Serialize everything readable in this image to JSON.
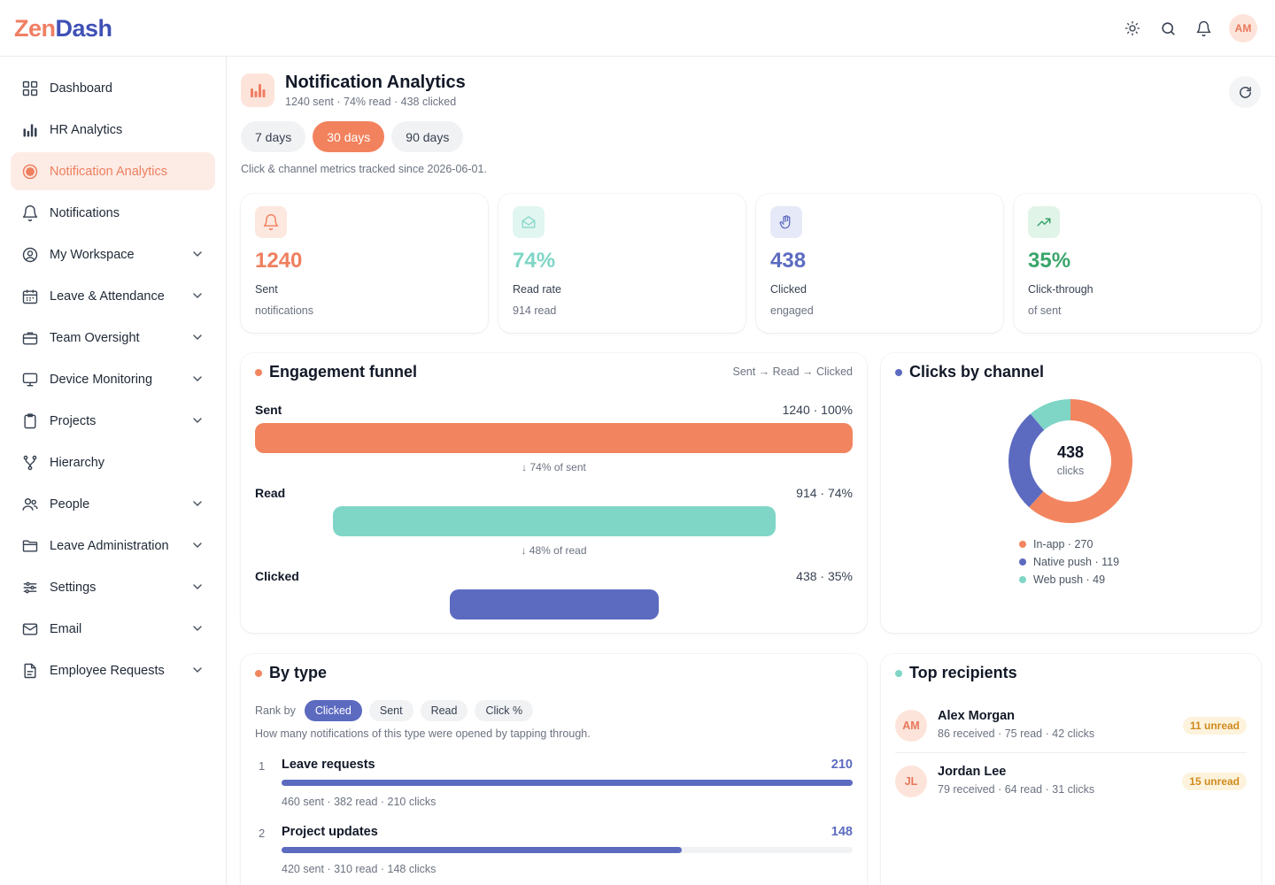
{
  "brand": {
    "part1": "Zen",
    "part2": "Dash"
  },
  "topbar": {
    "avatar_initials": "AM",
    "icons": [
      "sun-icon",
      "search-icon",
      "bell-icon"
    ]
  },
  "sidebar": {
    "items": [
      {
        "label": "Dashboard",
        "icon": "grid-icon",
        "chevron": false,
        "active": false
      },
      {
        "label": "HR Analytics",
        "icon": "bar-chart-icon",
        "chevron": false,
        "active": false
      },
      {
        "label": "Notification Analytics",
        "icon": "circle-dot-icon",
        "chevron": false,
        "active": true
      },
      {
        "label": "Notifications",
        "icon": "bell-icon",
        "chevron": false,
        "active": false
      },
      {
        "label": "My Workspace",
        "icon": "user-circle-icon",
        "chevron": true,
        "active": false
      },
      {
        "label": "Leave & Attendance",
        "icon": "calendar-icon",
        "chevron": true,
        "active": false
      },
      {
        "label": "Team Oversight",
        "icon": "briefcase-icon",
        "chevron": true,
        "active": false
      },
      {
        "label": "Device Monitoring",
        "icon": "monitor-icon",
        "chevron": true,
        "active": false
      },
      {
        "label": "Projects",
        "icon": "clipboard-icon",
        "chevron": true,
        "active": false
      },
      {
        "label": "Hierarchy",
        "icon": "hierarchy-icon",
        "chevron": false,
        "active": false
      },
      {
        "label": "People",
        "icon": "users-icon",
        "chevron": true,
        "active": false
      },
      {
        "label": "Leave Administration",
        "icon": "folder-icon",
        "chevron": true,
        "active": false
      },
      {
        "label": "Settings",
        "icon": "sliders-icon",
        "chevron": true,
        "active": false
      },
      {
        "label": "Email",
        "icon": "mail-icon",
        "chevron": true,
        "active": false
      },
      {
        "label": "Employee Requests",
        "icon": "file-icon",
        "chevron": true,
        "active": false
      }
    ]
  },
  "header": {
    "title": "Notification Analytics",
    "subtitle": "1240 sent · 74% read · 438 clicked",
    "periods": [
      "7 days",
      "30 days",
      "90 days"
    ],
    "active_period": "30 days",
    "tracked_note": "Click & channel metrics tracked since 2026-06-01."
  },
  "stats": [
    {
      "value": "1240",
      "label": "Sent",
      "sub": "notifications",
      "color": "#ef7f5f",
      "bg": "#fde8df",
      "icon": "bell-icon"
    },
    {
      "value": "74%",
      "label": "Read rate",
      "sub": "914 read",
      "color": "#7fd6c6",
      "bg": "#e2f6f1",
      "icon": "envelope-open-icon"
    },
    {
      "value": "438",
      "label": "Clicked",
      "sub": "engaged",
      "color": "#5c6bc0",
      "bg": "#e6e9f7",
      "icon": "hand-icon"
    },
    {
      "value": "35%",
      "label": "Click-through",
      "sub": "of sent",
      "color": "#3aa56b",
      "bg": "#e1f4e8",
      "icon": "trend-up-icon"
    }
  ],
  "funnel": {
    "title": "Engagement funnel",
    "hint": "Sent → Read → Clicked",
    "stages": [
      {
        "label": "Sent",
        "value": "1240 · 100%",
        "fraction": 1.0,
        "color": "#f2855f"
      },
      {
        "label": "Read",
        "value": "914 · 74%",
        "fraction": 0.74,
        "color": "#7fd6c6"
      },
      {
        "label": "Clicked",
        "value": "438 · 35%",
        "fraction": 0.35,
        "color": "#5c6bc0"
      }
    ],
    "drops": [
      "↓ 74% of sent",
      "↓ 48% of read"
    ]
  },
  "channels": {
    "title": "Clicks by channel",
    "total": "438",
    "total_label": "clicks",
    "items": [
      {
        "label": "In-app · 270",
        "value": 270,
        "color": "#f2855f"
      },
      {
        "label": "Native push · 119",
        "value": 119,
        "color": "#5c6bc0"
      },
      {
        "label": "Web push · 49",
        "value": 49,
        "color": "#7fd6c6"
      }
    ]
  },
  "by_type": {
    "title": "By type",
    "rank_label": "Rank by",
    "rank_options": [
      "Clicked",
      "Sent",
      "Read",
      "Click %"
    ],
    "active_rank": "Clicked",
    "description": "How many notifications of this type were opened by tapping through.",
    "rows": [
      {
        "rank": "1",
        "name": "Leave requests",
        "clicks": "210",
        "fraction": 1.0,
        "sub": "460 sent · 382 read · 210 clicks"
      },
      {
        "rank": "2",
        "name": "Project updates",
        "clicks": "148",
        "fraction": 0.7,
        "sub": "420 sent · 310 read · 148 clicks"
      }
    ]
  },
  "recipients": {
    "title": "Top recipients",
    "rows": [
      {
        "initials": "AM",
        "name": "Alex Morgan",
        "sub": "86 received · 75 read · 42 clicks",
        "badge": "11 unread"
      },
      {
        "initials": "JL",
        "name": "Jordan Lee",
        "sub": "79 received · 64 read · 31 clicks",
        "badge": "15 unread"
      }
    ]
  }
}
